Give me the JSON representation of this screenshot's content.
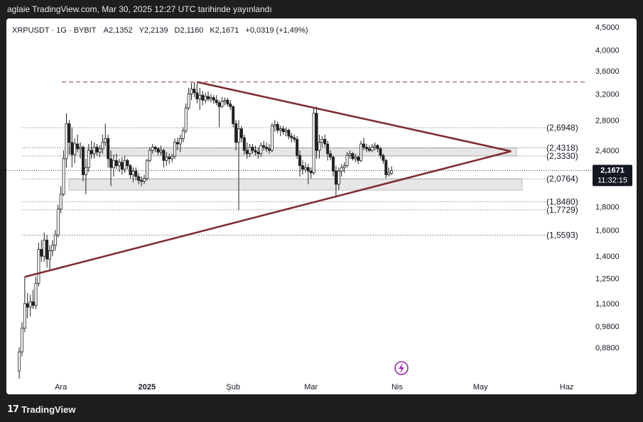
{
  "header": {
    "publish_line": "aglaie TradingView.com, Mar 30, 2025 12:27 UTC tarihinde yayınlandı"
  },
  "legend": {
    "symbol": "XRPUSDT · 1G · BYBIT",
    "open": "A2,1352",
    "high": "Y2,2139",
    "low": "D2,1160",
    "close": "K2,1671",
    "change": "+0,0319 (+1,49%)"
  },
  "footer": {
    "brand": "TradingView",
    "brand_mark": "17"
  },
  "colors": {
    "up": "#1a1a1a",
    "down": "#1a1a1a",
    "trendline": "#7f2c2c",
    "price_tag": "#131722"
  },
  "price_label": {
    "value": "2,1671",
    "countdown": "11:32:15"
  },
  "chart_data": {
    "type": "candlestick",
    "scale": "log",
    "ylim": [
      0.75,
      4.6
    ],
    "y_ticks": [
      {
        "v": 4.5,
        "label": "4,5000"
      },
      {
        "v": 4.0,
        "label": "4,0000"
      },
      {
        "v": 3.6,
        "label": "3,6000"
      },
      {
        "v": 3.2,
        "label": "3,2000"
      },
      {
        "v": 2.8,
        "label": "2,8000"
      },
      {
        "v": 2.4,
        "label": "2,4000"
      },
      {
        "v": 1.8,
        "label": "1,8000"
      },
      {
        "v": 1.6,
        "label": "1,6000"
      },
      {
        "v": 1.4,
        "label": "1,4000"
      },
      {
        "v": 1.25,
        "label": "1,2500"
      },
      {
        "v": 1.1,
        "label": "1,1000"
      },
      {
        "v": 0.98,
        "label": "0,9800"
      },
      {
        "v": 0.88,
        "label": "0,8800"
      }
    ],
    "x_ticks": [
      {
        "date": "2024-12-01",
        "label": "Ara",
        "bold": false
      },
      {
        "date": "2025-01-01",
        "label": "2025",
        "bold": true
      },
      {
        "date": "2025-02-01",
        "label": "Şub",
        "bold": false
      },
      {
        "date": "2025-03-01",
        "label": "Mar",
        "bold": false
      },
      {
        "date": "2025-04-01",
        "label": "Nis",
        "bold": false
      },
      {
        "date": "2025-05-01",
        "label": "May",
        "bold": false
      },
      {
        "date": "2025-06-01",
        "label": "Haz",
        "bold": false
      }
    ],
    "xlim": [
      "2024-11-16",
      "2025-06-07"
    ],
    "levels": [
      {
        "v": 2.6948,
        "label": "(2,6948)"
      },
      {
        "v": 2.4318,
        "label": "(2,4318)"
      },
      {
        "v": 2.333,
        "label": "(2,3330)"
      },
      {
        "v": 2.0764,
        "label": "(2,0764)"
      },
      {
        "v": 1.848,
        "label": "(1,8480)"
      },
      {
        "v": 1.7729,
        "label": "(1,7729)"
      },
      {
        "v": 1.5593,
        "label": "(1,5593)"
      }
    ],
    "zones": [
      {
        "from": 2.333,
        "to": 2.4318,
        "until": "2025-05-14"
      },
      {
        "from": 1.96,
        "to": 2.0764,
        "until": "2025-05-16"
      }
    ],
    "resistance_dashed": 3.4,
    "triangle": {
      "upper": [
        [
          "2025-01-19",
          3.4
        ],
        [
          "2025-05-12",
          2.39
        ]
      ],
      "lower": [
        [
          "2024-11-18",
          1.26
        ],
        [
          "2025-05-12",
          2.39
        ]
      ]
    },
    "candles": [
      {
        "d": "2024-11-16",
        "o": 0.78,
        "h": 0.88,
        "l": 0.75,
        "c": 0.86
      },
      {
        "d": "2024-11-17",
        "o": 0.86,
        "h": 1.0,
        "l": 0.84,
        "c": 0.97
      },
      {
        "d": "2024-11-18",
        "o": 0.97,
        "h": 1.26,
        "l": 0.95,
        "c": 1.1
      },
      {
        "d": "2024-11-19",
        "o": 1.1,
        "h": 1.16,
        "l": 1.02,
        "c": 1.08
      },
      {
        "d": "2024-11-20",
        "o": 1.08,
        "h": 1.15,
        "l": 1.03,
        "c": 1.11
      },
      {
        "d": "2024-11-21",
        "o": 1.11,
        "h": 1.18,
        "l": 1.07,
        "c": 1.09
      },
      {
        "d": "2024-11-22",
        "o": 1.09,
        "h": 1.26,
        "l": 1.07,
        "c": 1.22
      },
      {
        "d": "2024-11-23",
        "o": 1.22,
        "h": 1.5,
        "l": 1.2,
        "c": 1.45
      },
      {
        "d": "2024-11-24",
        "o": 1.45,
        "h": 1.52,
        "l": 1.36,
        "c": 1.4
      },
      {
        "d": "2024-11-25",
        "o": 1.4,
        "h": 1.58,
        "l": 1.36,
        "c": 1.52
      },
      {
        "d": "2024-11-26",
        "o": 1.52,
        "h": 1.56,
        "l": 1.32,
        "c": 1.38
      },
      {
        "d": "2024-11-27",
        "o": 1.38,
        "h": 1.48,
        "l": 1.3,
        "c": 1.44
      },
      {
        "d": "2024-11-28",
        "o": 1.44,
        "h": 1.52,
        "l": 1.4,
        "c": 1.48
      },
      {
        "d": "2024-11-29",
        "o": 1.48,
        "h": 1.6,
        "l": 1.44,
        "c": 1.56
      },
      {
        "d": "2024-11-30",
        "o": 1.56,
        "h": 1.82,
        "l": 1.54,
        "c": 1.78
      },
      {
        "d": "2024-12-01",
        "o": 1.78,
        "h": 2.0,
        "l": 1.74,
        "c": 1.92
      },
      {
        "d": "2024-12-02",
        "o": 1.92,
        "h": 2.4,
        "l": 1.9,
        "c": 2.3
      },
      {
        "d": "2024-12-03",
        "o": 2.3,
        "h": 2.9,
        "l": 2.2,
        "c": 2.75
      },
      {
        "d": "2024-12-04",
        "o": 2.75,
        "h": 2.8,
        "l": 2.35,
        "c": 2.5
      },
      {
        "d": "2024-12-05",
        "o": 2.5,
        "h": 2.7,
        "l": 2.2,
        "c": 2.35
      },
      {
        "d": "2024-12-06",
        "o": 2.35,
        "h": 2.55,
        "l": 2.25,
        "c": 2.48
      },
      {
        "d": "2024-12-07",
        "o": 2.48,
        "h": 2.6,
        "l": 2.38,
        "c": 2.42
      },
      {
        "d": "2024-12-08",
        "o": 2.42,
        "h": 2.5,
        "l": 2.3,
        "c": 2.44
      },
      {
        "d": "2024-12-09",
        "o": 2.44,
        "h": 2.46,
        "l": 2.05,
        "c": 2.12
      },
      {
        "d": "2024-12-10",
        "o": 2.12,
        "h": 2.3,
        "l": 1.92,
        "c": 2.2
      },
      {
        "d": "2024-12-11",
        "o": 2.2,
        "h": 2.48,
        "l": 2.15,
        "c": 2.4
      },
      {
        "d": "2024-12-12",
        "o": 2.4,
        "h": 2.52,
        "l": 2.3,
        "c": 2.36
      },
      {
        "d": "2024-12-13",
        "o": 2.36,
        "h": 2.5,
        "l": 2.3,
        "c": 2.44
      },
      {
        "d": "2024-12-14",
        "o": 2.44,
        "h": 2.48,
        "l": 2.34,
        "c": 2.38
      },
      {
        "d": "2024-12-15",
        "o": 2.38,
        "h": 2.46,
        "l": 2.32,
        "c": 2.42
      },
      {
        "d": "2024-12-16",
        "o": 2.42,
        "h": 2.6,
        "l": 2.36,
        "c": 2.5
      },
      {
        "d": "2024-12-17",
        "o": 2.5,
        "h": 2.75,
        "l": 2.45,
        "c": 2.55
      },
      {
        "d": "2024-12-18",
        "o": 2.55,
        "h": 2.6,
        "l": 2.2,
        "c": 2.3
      },
      {
        "d": "2024-12-19",
        "o": 2.3,
        "h": 2.4,
        "l": 2.0,
        "c": 2.2
      },
      {
        "d": "2024-12-20",
        "o": 2.2,
        "h": 2.35,
        "l": 2.1,
        "c": 2.28
      },
      {
        "d": "2024-12-21",
        "o": 2.28,
        "h": 2.36,
        "l": 2.18,
        "c": 2.22
      },
      {
        "d": "2024-12-22",
        "o": 2.22,
        "h": 2.3,
        "l": 2.15,
        "c": 2.26
      },
      {
        "d": "2024-12-23",
        "o": 2.26,
        "h": 2.32,
        "l": 2.12,
        "c": 2.18
      },
      {
        "d": "2024-12-24",
        "o": 2.18,
        "h": 2.34,
        "l": 2.14,
        "c": 2.28
      },
      {
        "d": "2024-12-25",
        "o": 2.28,
        "h": 2.3,
        "l": 2.18,
        "c": 2.22
      },
      {
        "d": "2024-12-26",
        "o": 2.22,
        "h": 2.24,
        "l": 2.08,
        "c": 2.12
      },
      {
        "d": "2024-12-27",
        "o": 2.12,
        "h": 2.2,
        "l": 2.04,
        "c": 2.16
      },
      {
        "d": "2024-12-28",
        "o": 2.16,
        "h": 2.2,
        "l": 2.06,
        "c": 2.1
      },
      {
        "d": "2024-12-29",
        "o": 2.1,
        "h": 2.14,
        "l": 2.02,
        "c": 2.06
      },
      {
        "d": "2024-12-30",
        "o": 2.06,
        "h": 2.1,
        "l": 2.0,
        "c": 2.05
      },
      {
        "d": "2024-12-31",
        "o": 2.05,
        "h": 2.12,
        "l": 2.02,
        "c": 2.08
      },
      {
        "d": "2025-01-01",
        "o": 2.08,
        "h": 2.3,
        "l": 2.06,
        "c": 2.28
      },
      {
        "d": "2025-01-02",
        "o": 2.28,
        "h": 2.44,
        "l": 2.26,
        "c": 2.4
      },
      {
        "d": "2025-01-03",
        "o": 2.4,
        "h": 2.48,
        "l": 2.36,
        "c": 2.44
      },
      {
        "d": "2025-01-04",
        "o": 2.44,
        "h": 2.46,
        "l": 2.38,
        "c": 2.42
      },
      {
        "d": "2025-01-05",
        "o": 2.42,
        "h": 2.44,
        "l": 2.34,
        "c": 2.38
      },
      {
        "d": "2025-01-06",
        "o": 2.38,
        "h": 2.46,
        "l": 2.34,
        "c": 2.4
      },
      {
        "d": "2025-01-07",
        "o": 2.4,
        "h": 2.42,
        "l": 2.2,
        "c": 2.28
      },
      {
        "d": "2025-01-08",
        "o": 2.28,
        "h": 2.38,
        "l": 2.22,
        "c": 2.32
      },
      {
        "d": "2025-01-09",
        "o": 2.32,
        "h": 2.36,
        "l": 2.24,
        "c": 2.3
      },
      {
        "d": "2025-01-10",
        "o": 2.3,
        "h": 2.36,
        "l": 2.26,
        "c": 2.33
      },
      {
        "d": "2025-01-11",
        "o": 2.33,
        "h": 2.55,
        "l": 2.3,
        "c": 2.5
      },
      {
        "d": "2025-01-12",
        "o": 2.5,
        "h": 2.56,
        "l": 2.4,
        "c": 2.48
      },
      {
        "d": "2025-01-13",
        "o": 2.48,
        "h": 2.6,
        "l": 2.38,
        "c": 2.55
      },
      {
        "d": "2025-01-14",
        "o": 2.55,
        "h": 2.7,
        "l": 2.5,
        "c": 2.65
      },
      {
        "d": "2025-01-15",
        "o": 2.65,
        "h": 3.05,
        "l": 2.62,
        "c": 2.98
      },
      {
        "d": "2025-01-16",
        "o": 2.98,
        "h": 3.3,
        "l": 2.95,
        "c": 3.2
      },
      {
        "d": "2025-01-17",
        "o": 3.2,
        "h": 3.38,
        "l": 3.1,
        "c": 3.28
      },
      {
        "d": "2025-01-18",
        "o": 3.28,
        "h": 3.4,
        "l": 3.15,
        "c": 3.22
      },
      {
        "d": "2025-01-19",
        "o": 3.22,
        "h": 3.38,
        "l": 3.05,
        "c": 3.12
      },
      {
        "d": "2025-01-20",
        "o": 3.12,
        "h": 3.3,
        "l": 2.95,
        "c": 3.18
      },
      {
        "d": "2025-01-21",
        "o": 3.18,
        "h": 3.25,
        "l": 3.02,
        "c": 3.1
      },
      {
        "d": "2025-01-22",
        "o": 3.1,
        "h": 3.22,
        "l": 3.05,
        "c": 3.16
      },
      {
        "d": "2025-01-23",
        "o": 3.16,
        "h": 3.24,
        "l": 3.08,
        "c": 3.12
      },
      {
        "d": "2025-01-24",
        "o": 3.12,
        "h": 3.2,
        "l": 3.06,
        "c": 3.14
      },
      {
        "d": "2025-01-25",
        "o": 3.14,
        "h": 3.18,
        "l": 3.04,
        "c": 3.1
      },
      {
        "d": "2025-01-26",
        "o": 3.1,
        "h": 3.18,
        "l": 3.02,
        "c": 3.06
      },
      {
        "d": "2025-01-27",
        "o": 3.06,
        "h": 3.1,
        "l": 2.7,
        "c": 3.0
      },
      {
        "d": "2025-01-28",
        "o": 3.0,
        "h": 3.15,
        "l": 2.98,
        "c": 3.08
      },
      {
        "d": "2025-01-29",
        "o": 3.08,
        "h": 3.14,
        "l": 3.02,
        "c": 3.1
      },
      {
        "d": "2025-01-30",
        "o": 3.1,
        "h": 3.14,
        "l": 3.0,
        "c": 3.04
      },
      {
        "d": "2025-01-31",
        "o": 3.04,
        "h": 3.1,
        "l": 2.95,
        "c": 3.0
      },
      {
        "d": "2025-02-01",
        "o": 3.0,
        "h": 3.02,
        "l": 2.7,
        "c": 2.75
      },
      {
        "d": "2025-02-02",
        "o": 2.75,
        "h": 2.8,
        "l": 2.4,
        "c": 2.5
      },
      {
        "d": "2025-02-03",
        "o": 2.5,
        "h": 2.8,
        "l": 1.77,
        "c": 2.68
      },
      {
        "d": "2025-02-04",
        "o": 2.68,
        "h": 2.72,
        "l": 2.5,
        "c": 2.56
      },
      {
        "d": "2025-02-05",
        "o": 2.56,
        "h": 2.6,
        "l": 2.35,
        "c": 2.4
      },
      {
        "d": "2025-02-06",
        "o": 2.4,
        "h": 2.5,
        "l": 2.3,
        "c": 2.36
      },
      {
        "d": "2025-02-07",
        "o": 2.36,
        "h": 2.48,
        "l": 2.32,
        "c": 2.44
      },
      {
        "d": "2025-02-08",
        "o": 2.44,
        "h": 2.48,
        "l": 2.36,
        "c": 2.4
      },
      {
        "d": "2025-02-09",
        "o": 2.4,
        "h": 2.46,
        "l": 2.34,
        "c": 2.38
      },
      {
        "d": "2025-02-10",
        "o": 2.38,
        "h": 2.44,
        "l": 2.3,
        "c": 2.36
      },
      {
        "d": "2025-02-11",
        "o": 2.36,
        "h": 2.5,
        "l": 2.32,
        "c": 2.46
      },
      {
        "d": "2025-02-12",
        "o": 2.46,
        "h": 2.52,
        "l": 2.4,
        "c": 2.44
      },
      {
        "d": "2025-02-13",
        "o": 2.44,
        "h": 2.5,
        "l": 2.38,
        "c": 2.42
      },
      {
        "d": "2025-02-14",
        "o": 2.42,
        "h": 2.48,
        "l": 2.36,
        "c": 2.4
      },
      {
        "d": "2025-02-15",
        "o": 2.4,
        "h": 2.76,
        "l": 2.38,
        "c": 2.72
      },
      {
        "d": "2025-02-16",
        "o": 2.72,
        "h": 2.8,
        "l": 2.64,
        "c": 2.74
      },
      {
        "d": "2025-02-17",
        "o": 2.74,
        "h": 2.78,
        "l": 2.62,
        "c": 2.66
      },
      {
        "d": "2025-02-18",
        "o": 2.66,
        "h": 2.72,
        "l": 2.58,
        "c": 2.68
      },
      {
        "d": "2025-02-19",
        "o": 2.68,
        "h": 2.72,
        "l": 2.6,
        "c": 2.64
      },
      {
        "d": "2025-02-20",
        "o": 2.64,
        "h": 2.7,
        "l": 2.58,
        "c": 2.66
      },
      {
        "d": "2025-02-21",
        "o": 2.66,
        "h": 2.68,
        "l": 2.54,
        "c": 2.58
      },
      {
        "d": "2025-02-22",
        "o": 2.58,
        "h": 2.62,
        "l": 2.5,
        "c": 2.56
      },
      {
        "d": "2025-02-23",
        "o": 2.56,
        "h": 2.6,
        "l": 2.5,
        "c": 2.54
      },
      {
        "d": "2025-02-24",
        "o": 2.54,
        "h": 2.58,
        "l": 2.3,
        "c": 2.34
      },
      {
        "d": "2025-02-25",
        "o": 2.34,
        "h": 2.4,
        "l": 2.1,
        "c": 2.22
      },
      {
        "d": "2025-02-26",
        "o": 2.22,
        "h": 2.28,
        "l": 2.12,
        "c": 2.18
      },
      {
        "d": "2025-02-27",
        "o": 2.18,
        "h": 2.26,
        "l": 2.14,
        "c": 2.2
      },
      {
        "d": "2025-02-28",
        "o": 2.2,
        "h": 2.24,
        "l": 2.02,
        "c": 2.16
      },
      {
        "d": "2025-03-01",
        "o": 2.16,
        "h": 2.2,
        "l": 2.08,
        "c": 2.14
      },
      {
        "d": "2025-03-02",
        "o": 2.14,
        "h": 2.98,
        "l": 2.12,
        "c": 2.9
      },
      {
        "d": "2025-03-03",
        "o": 2.9,
        "h": 3.0,
        "l": 2.3,
        "c": 2.4
      },
      {
        "d": "2025-03-04",
        "o": 2.4,
        "h": 2.6,
        "l": 2.3,
        "c": 2.5
      },
      {
        "d": "2025-03-05",
        "o": 2.5,
        "h": 2.58,
        "l": 2.44,
        "c": 2.54
      },
      {
        "d": "2025-03-06",
        "o": 2.54,
        "h": 2.6,
        "l": 2.44,
        "c": 2.48
      },
      {
        "d": "2025-03-07",
        "o": 2.48,
        "h": 2.52,
        "l": 2.28,
        "c": 2.36
      },
      {
        "d": "2025-03-08",
        "o": 2.36,
        "h": 2.4,
        "l": 2.28,
        "c": 2.32
      },
      {
        "d": "2025-03-09",
        "o": 2.32,
        "h": 2.34,
        "l": 2.1,
        "c": 2.16
      },
      {
        "d": "2025-03-10",
        "o": 2.16,
        "h": 2.22,
        "l": 1.9,
        "c": 2.02
      },
      {
        "d": "2025-03-11",
        "o": 2.02,
        "h": 2.2,
        "l": 1.96,
        "c": 2.16
      },
      {
        "d": "2025-03-12",
        "o": 2.16,
        "h": 2.24,
        "l": 2.1,
        "c": 2.2
      },
      {
        "d": "2025-03-13",
        "o": 2.2,
        "h": 2.26,
        "l": 2.14,
        "c": 2.22
      },
      {
        "d": "2025-03-14",
        "o": 2.22,
        "h": 2.38,
        "l": 2.2,
        "c": 2.34
      },
      {
        "d": "2025-03-15",
        "o": 2.34,
        "h": 2.4,
        "l": 2.3,
        "c": 2.36
      },
      {
        "d": "2025-03-16",
        "o": 2.36,
        "h": 2.38,
        "l": 2.28,
        "c": 2.3
      },
      {
        "d": "2025-03-17",
        "o": 2.3,
        "h": 2.36,
        "l": 2.26,
        "c": 2.32
      },
      {
        "d": "2025-03-18",
        "o": 2.32,
        "h": 2.34,
        "l": 2.24,
        "c": 2.28
      },
      {
        "d": "2025-03-19",
        "o": 2.28,
        "h": 2.52,
        "l": 2.26,
        "c": 2.48
      },
      {
        "d": "2025-03-20",
        "o": 2.48,
        "h": 2.56,
        "l": 2.4,
        "c": 2.44
      },
      {
        "d": "2025-03-21",
        "o": 2.44,
        "h": 2.48,
        "l": 2.38,
        "c": 2.42
      },
      {
        "d": "2025-03-22",
        "o": 2.42,
        "h": 2.46,
        "l": 2.38,
        "c": 2.4
      },
      {
        "d": "2025-03-23",
        "o": 2.4,
        "h": 2.48,
        "l": 2.38,
        "c": 2.44
      },
      {
        "d": "2025-03-24",
        "o": 2.44,
        "h": 2.5,
        "l": 2.4,
        "c": 2.46
      },
      {
        "d": "2025-03-25",
        "o": 2.46,
        "h": 2.48,
        "l": 2.38,
        "c": 2.42
      },
      {
        "d": "2025-03-26",
        "o": 2.42,
        "h": 2.44,
        "l": 2.3,
        "c": 2.34
      },
      {
        "d": "2025-03-27",
        "o": 2.34,
        "h": 2.36,
        "l": 2.24,
        "c": 2.28
      },
      {
        "d": "2025-03-28",
        "o": 2.28,
        "h": 2.3,
        "l": 2.08,
        "c": 2.12
      },
      {
        "d": "2025-03-29",
        "o": 2.12,
        "h": 2.2,
        "l": 2.1,
        "c": 2.14
      },
      {
        "d": "2025-03-30",
        "o": 2.1352,
        "h": 2.2139,
        "l": 2.116,
        "c": 2.1671
      }
    ]
  }
}
